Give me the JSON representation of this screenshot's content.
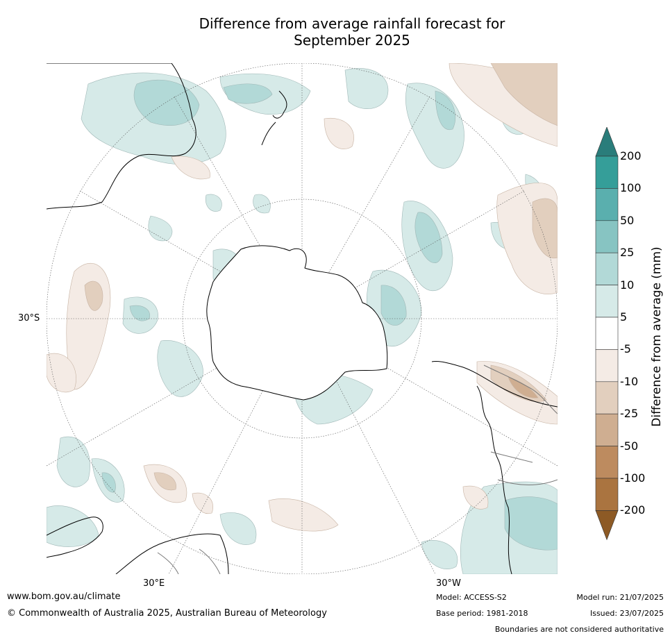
{
  "title_line1": "Difference from average rainfall forecast for",
  "title_line2": "September 2025",
  "map": {
    "projection": "south-polar stereographic",
    "labels": {
      "lat_30s": "30°S",
      "lon_30e": "30°E",
      "lon_30w": "30°W"
    }
  },
  "colorbar": {
    "label": "Difference from average (mm)",
    "ticks": [
      "200",
      "100",
      "50",
      "25",
      "10",
      "5",
      "-5",
      "-10",
      "-25",
      "-50",
      "-100",
      "-200"
    ],
    "colors_wet_to_dry": [
      "#2a7d7b",
      "#359e99",
      "#5aafae",
      "#87c4c2",
      "#b2d9d7",
      "#d6eae8",
      "#ffffff",
      "#f4ebe5",
      "#e2cfbe",
      "#cfae91",
      "#bd8b5f",
      "#aa7440",
      "#8d5a25"
    ]
  },
  "footer": {
    "website": "www.bom.gov.au/climate",
    "copyright": "© Commonwealth of Australia 2025, Australian Bureau of Meteorology",
    "model": "Model: ACCESS-S2",
    "base_period": "Base period: 1981-2018",
    "model_run": "Model run: 21/07/2025",
    "issued": "Issued: 23/07/2025",
    "disclaimer": "Boundaries are not considered authoritative"
  }
}
